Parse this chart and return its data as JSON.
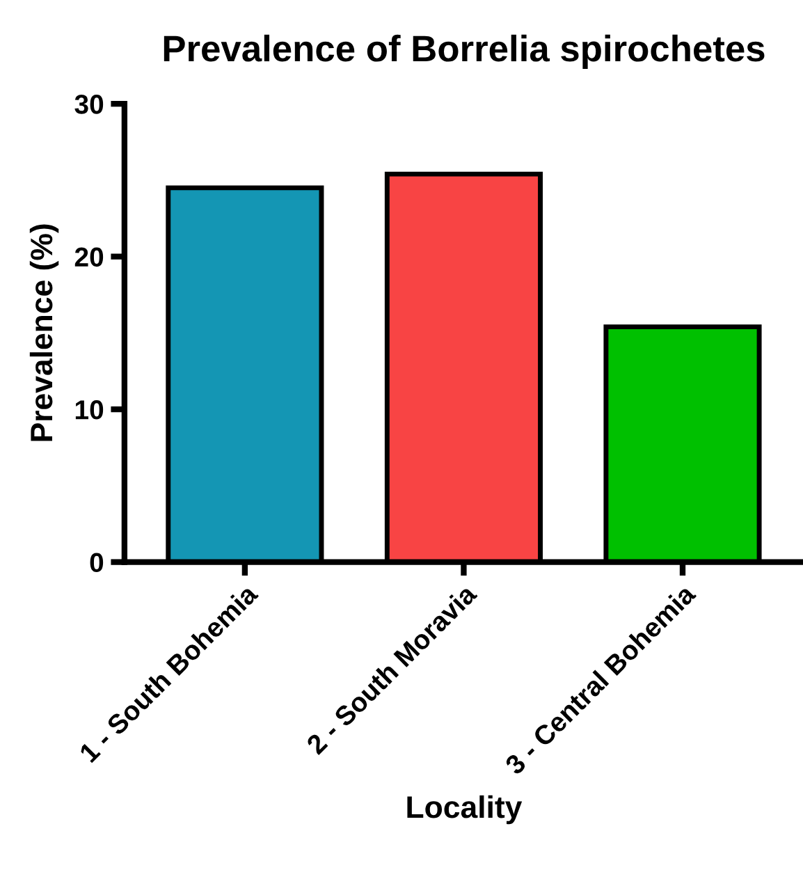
{
  "chart_data": {
    "type": "bar",
    "title": "Prevalence of Borrelia spirochetes",
    "xlabel": "Locality",
    "ylabel": "Prevalence (%)",
    "categories": [
      "1 - South Bohemia",
      "2 - South Moravia",
      "3 - Central Bohemia"
    ],
    "values": [
      24.5,
      25.4,
      15.4
    ],
    "colors": [
      "#1496b4",
      "#f84444",
      "#00c000"
    ],
    "ylim": [
      0,
      30
    ],
    "yticks": [
      0,
      10,
      20,
      30
    ],
    "grid": false
  }
}
